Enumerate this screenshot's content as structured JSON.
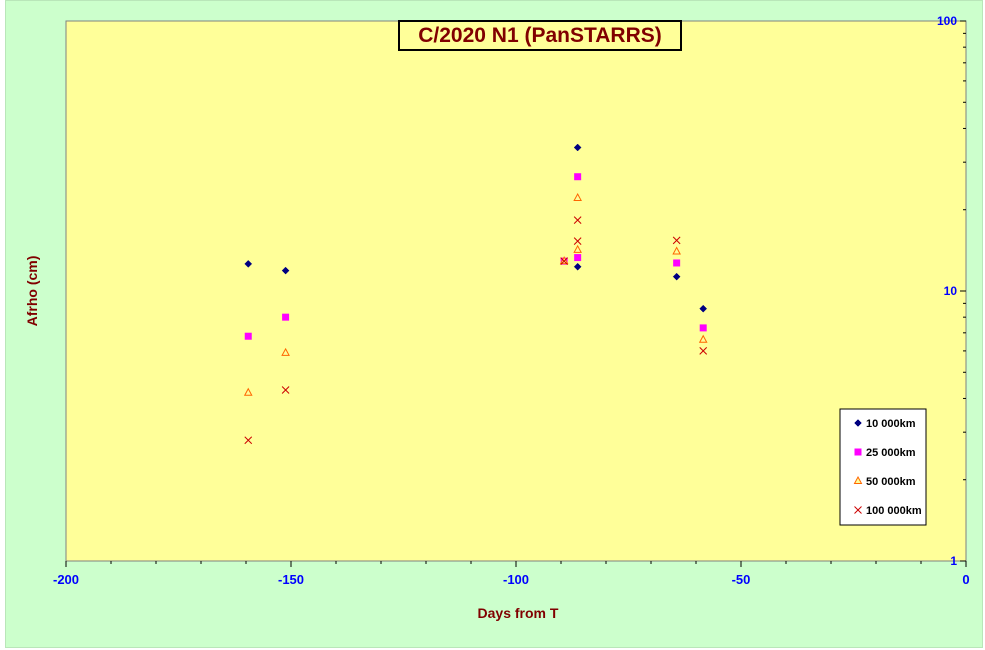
{
  "chart_data": {
    "type": "scatter",
    "title": "C/2020 N1 (PanSTARRS)",
    "xlabel": "Days from  T",
    "ylabel": "Afrho (cm)",
    "xlim": [
      -200,
      0
    ],
    "ylim": [
      1,
      100
    ],
    "y_scale": "log",
    "x_ticks": [
      -200,
      -150,
      -100,
      -50,
      0
    ],
    "y_ticks": [
      1,
      10,
      100
    ],
    "grid": false,
    "legend_position": "bottom-right",
    "colors": {
      "outer_background": "#ccffcc",
      "plot_background": "#ffff99",
      "tick_labels": "#0000ff",
      "axis_titles": "#800000"
    },
    "series": [
      {
        "name": "10 000km",
        "marker": "diamond",
        "color": "#000080",
        "points": [
          [
            -159.5,
            12.6
          ],
          [
            -151.2,
            11.9
          ],
          [
            -86.3,
            34.0
          ],
          [
            -86.3,
            12.3
          ],
          [
            -64.3,
            11.3
          ],
          [
            -58.4,
            8.6
          ]
        ]
      },
      {
        "name": "25 000km",
        "marker": "square",
        "color": "#ff00ff",
        "points": [
          [
            -159.5,
            6.8
          ],
          [
            -151.2,
            8.0
          ],
          [
            -89.3,
            12.9
          ],
          [
            -86.3,
            26.5
          ],
          [
            -86.3,
            13.3
          ],
          [
            -64.3,
            12.7
          ],
          [
            -58.4,
            7.3
          ]
        ]
      },
      {
        "name": "50 000km",
        "marker": "triangle",
        "color": "#ff6600",
        "points": [
          [
            -159.5,
            4.2
          ],
          [
            -151.2,
            5.9
          ],
          [
            -89.3,
            12.9
          ],
          [
            -86.3,
            22.1
          ],
          [
            -86.3,
            14.2
          ],
          [
            -64.3,
            14.0
          ],
          [
            -58.4,
            6.6
          ]
        ]
      },
      {
        "name": "100 000km",
        "marker": "x",
        "color": "#cc0000",
        "points": [
          [
            -159.5,
            2.8
          ],
          [
            -151.2,
            4.3
          ],
          [
            -89.3,
            12.9
          ],
          [
            -86.3,
            18.3
          ],
          [
            -86.3,
            15.3
          ],
          [
            -64.3,
            15.4
          ],
          [
            -58.4,
            6.0
          ]
        ]
      }
    ]
  }
}
